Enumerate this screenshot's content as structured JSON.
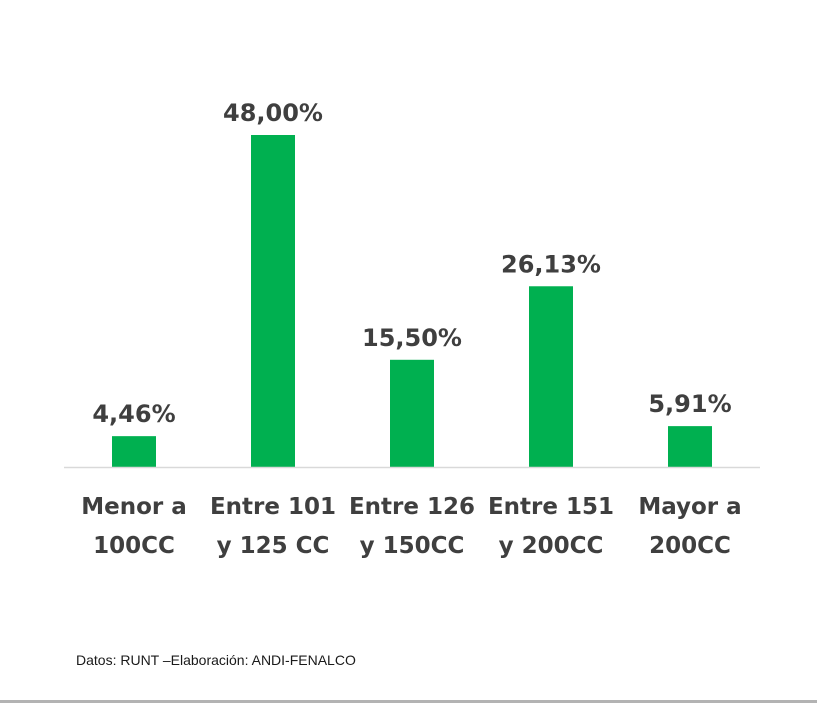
{
  "chart_data": {
    "type": "bar",
    "categories": [
      [
        "Menor a",
        "100CC"
      ],
      [
        "Entre 101",
        "y 125 CC"
      ],
      [
        "Entre 126",
        "y 150CC"
      ],
      [
        "Entre 151",
        "y 200CC"
      ],
      [
        "Mayor a",
        "200CC"
      ]
    ],
    "values": [
      4.46,
      48.0,
      15.5,
      26.13,
      5.91
    ],
    "data_labels": [
      "4,46%",
      "48,00%",
      "15,50%",
      "26,13%",
      "5,91%"
    ],
    "unit": "%",
    "ylim": [
      0,
      50
    ],
    "bar_color": "#00b050",
    "axis_color": "#d9d9d9",
    "text_color": "#3f3f3f",
    "grid": false,
    "legend": "none"
  },
  "source_note": "Datos: RUNT –Elaboración: ANDI-FENALCO"
}
